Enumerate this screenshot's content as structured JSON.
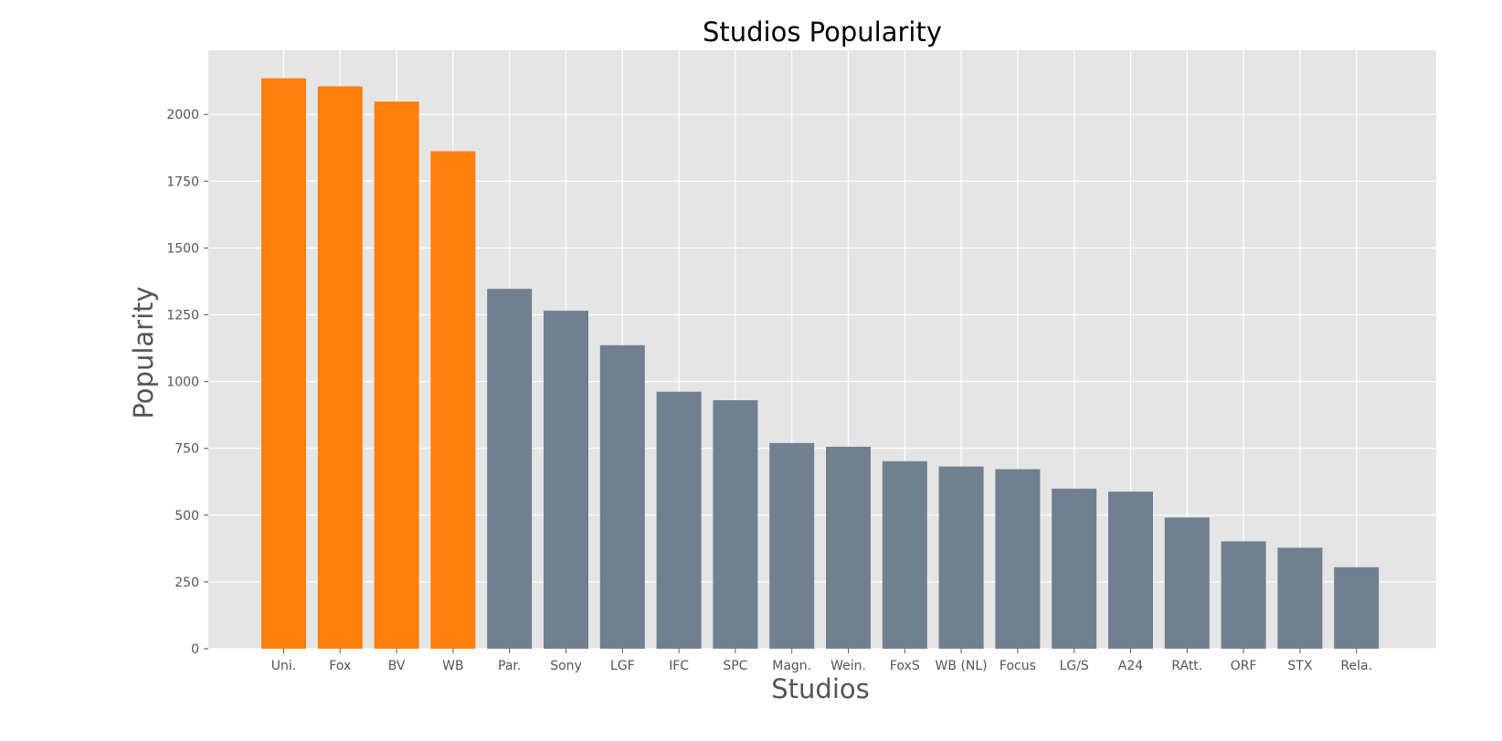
{
  "chart_data": {
    "type": "bar",
    "title": "Studios Popularity",
    "xlabel": "Studios",
    "ylabel": "Popularity",
    "categories": [
      "Uni.",
      "Fox",
      "BV",
      "WB",
      "Par.",
      "Sony",
      "LGF",
      "IFC",
      "SPC",
      "Magn.",
      "Wein.",
      "FoxS",
      "WB (NL)",
      "Focus",
      "LG/S",
      "A24",
      "RAtt.",
      "ORF",
      "STX",
      "Rela."
    ],
    "values": [
      2135,
      2105,
      2048,
      1862,
      1347,
      1265,
      1136,
      962,
      930,
      770,
      756,
      702,
      682,
      672,
      599,
      588,
      491,
      402,
      378,
      305
    ],
    "highlight_count": 4,
    "ylim": [
      0,
      2240
    ],
    "yticks": [
      0,
      250,
      500,
      750,
      1000,
      1250,
      1500,
      1750,
      2000
    ],
    "grid": true,
    "legend": "none",
    "colors": {
      "highlight": "#ff7f0e",
      "default": "#708090",
      "plot_background": "#e5e5e5",
      "grid": "#ffffff",
      "tick_text": "#555555"
    }
  }
}
